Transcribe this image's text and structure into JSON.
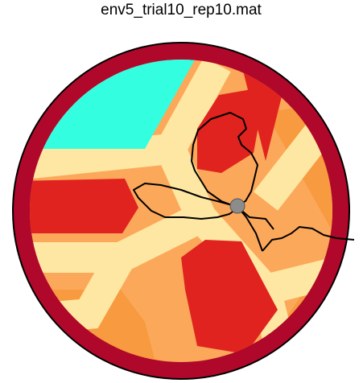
{
  "title": "env5_trial10_rep10.mat"
}
